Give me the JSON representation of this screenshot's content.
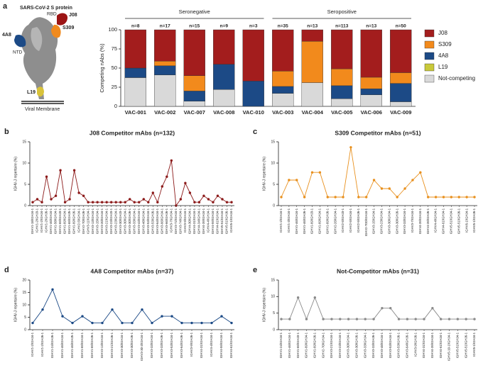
{
  "chart_data": [
    {
      "type": "stacked_bar",
      "panel": "a",
      "structure_labels": [
        "SARS-CoV-2 S protein",
        "RBD",
        "J08",
        "S309",
        "4A8",
        "NTD",
        "L19",
        "Viral Membrane"
      ],
      "ylabel": "Competing nAbs (%)",
      "ylim": [
        0,
        100
      ],
      "yticks": [
        0,
        25,
        50,
        75,
        100
      ],
      "categories": [
        "VAC-001",
        "VAC-002",
        "VAC-007",
        "VAC-008",
        "VAC-010",
        "VAC-003",
        "VAC-004",
        "VAC-005",
        "VAC-006",
        "VAC-009"
      ],
      "bar_labels": [
        "n=8",
        "n=17",
        "n=15",
        "n=9",
        "n=3",
        "n=35",
        "n=13",
        "n=113",
        "n=13",
        "n=50"
      ],
      "groups": [
        {
          "name": "Seronegative",
          "count": 5
        },
        {
          "name": "Seropositive",
          "count": 5
        }
      ],
      "series": [
        {
          "name": "Not-competing",
          "color": "#d9d9d9",
          "values": [
            37.5,
            41,
            6.7,
            22,
            0,
            17,
            31,
            10,
            15,
            6
          ]
        },
        {
          "name": "L19",
          "color": "#c9c93a",
          "values": [
            0,
            0,
            0,
            0,
            0,
            0,
            0,
            0,
            0,
            0
          ]
        },
        {
          "name": "4A8",
          "color": "#1c4a86",
          "values": [
            12.5,
            12,
            13.3,
            33,
            33,
            9,
            0,
            17,
            8,
            24
          ]
        },
        {
          "name": "S309",
          "color": "#f28a1c",
          "values": [
            0,
            6,
            20,
            0,
            0,
            20,
            54,
            22,
            15,
            14
          ]
        },
        {
          "name": "J08",
          "color": "#a31d1d",
          "values": [
            50,
            41,
            60,
            45,
            67,
            54,
            15,
            51,
            62,
            56
          ]
        }
      ]
    },
    {
      "type": "line",
      "panel": "b",
      "title": "J08 Competitor mAbs (n=132)",
      "color": "#8c1a1a",
      "ylabel": "IGHV-J repertoire (%)",
      "ylim": [
        0,
        15
      ],
      "yticks": [
        0,
        5,
        10,
        15
      ],
      "categories": [
        "IGHV1-18/IGHJ4-1",
        "IGHV1-2/IGHJ3-1",
        "IGHV1-2/IGHJ4-1",
        "IGHV1-2/IGHJ6-1",
        "IGHV1-46/IGHJ4-1",
        "IGHV1-58/IGHJ4-1",
        "IGHV1-69/IGHJ3-1",
        "IGHV1-69/IGHJ4-1",
        "IGHV1-69/IGHJ5-1",
        "IGHV1-69/IGHJ6-1",
        "IGHV2-5/IGHJ4-1",
        "IGHV2-70/IGHJ6-1",
        "IGHV3-11/IGHJ4-1",
        "IGHV3-13/IGHJ4-1",
        "IGHV3-15/IGHJ4-1",
        "IGHV3-20/IGHJ4-1",
        "IGHV3-21/IGHJ4-1",
        "IGHV3-23/IGHJ3-1",
        "IGHV3-23/IGHJ4-1",
        "IGHV3-30/IGHJ3-1",
        "IGHV3-30/IGHJ4-1",
        "IGHV3-30/IGHJ6-1",
        "IGHV3-33/IGHJ4-1",
        "IGHV3-43/IGHJ4-1",
        "IGHV3-48/IGHJ4-1",
        "IGHV3-53/IGHJ4-1",
        "IGHV3-53/IGHJ6-1",
        "IGHV3-64/IGHJ4-1",
        "IGHV3-66/IGHJ4-1",
        "IGHV3-66/IGHJ6-1",
        "IGHV3-7/IGHJ4-1",
        "IGHV3-72/IGHJ4-1",
        "IGHV3-74/IGHJ4-1",
        "IGHV3-9/IGHJ4-1",
        "IGHV4-30/IGHJ4-1",
        "IGHV4-31/IGHJ4-1",
        "IGHV4-34/IGHJ4-1",
        "IGHV4-39/IGHJ4-1",
        "IGHV4-4/IGHJ4-1",
        "IGHV4-59/IGHJ4-1",
        "IGHV4-61/IGHJ4-1",
        "IGHV5-51/IGHJ4-1",
        "IGHV5-51/IGHJ6-1",
        "IGHV6-1/IGHJ4-1"
      ],
      "values": [
        0.8,
        1.5,
        0.8,
        6.8,
        1.5,
        2.3,
        8.3,
        0.8,
        1.5,
        8.3,
        3,
        2.3,
        0.8,
        0.8,
        0.8,
        0.8,
        0.8,
        0.8,
        0.8,
        0.8,
        0.8,
        1.5,
        0.8,
        0.8,
        1.5,
        0.8,
        3,
        0.8,
        4.5,
        6.8,
        10.6,
        0,
        1.5,
        5.3,
        3,
        0.8,
        0.8,
        2.3,
        1.5,
        0.8,
        2.3,
        1.5,
        0.8,
        0.8
      ]
    },
    {
      "type": "line",
      "panel": "c",
      "title": "S309 Competitor mAbs (n=51)",
      "color": "#e8901e",
      "ylabel": "IGHV-J repertoire (%)",
      "ylim": [
        0,
        15
      ],
      "yticks": [
        0,
        5,
        10,
        15
      ],
      "categories": [
        "IGHV1-2/IGHJ4-1",
        "IGHV1-3/IGHJ4-1",
        "IGHV1-46/IGHJ4-1",
        "IGHV1-46/IGHJ6-1",
        "IGHV1-69/IGHJ3-1",
        "IGHV1-69/IGHJ4-1",
        "IGHV1-69/IGHJ6-1",
        "IGHV2-26/IGHJ4-1",
        "IGHV2-5/IGHJ3-1",
        "IGHV2-5/IGHJ4-1",
        "IGHV2-5/IGHJ6-1",
        "IGHV2-70D/IGHJ4-1",
        "IGHV3-15/IGHJ4-1",
        "IGHV3-23/IGHJ4-1",
        "IGHV3-30/IGHJ4-1",
        "IGHV3-30/IGHJ6-1",
        "IGHV3-33/IGHJ4-1",
        "IGHV3-7/IGHJ4-1",
        "IGHV4-39/IGHJ4-1",
        "IGHV4-39/IGHJ6-1",
        "IGHV4-4/IGHJ4-1",
        "IGHV4-61/IGHJ4-1",
        "IGHV5-51/IGHJ4-1",
        "IGHV5-51/IGHJ6-1",
        "IGHV6-1/IGHJ4-1",
        "IGHV6-1/IGHJ6-1"
      ],
      "values": [
        2,
        6,
        6,
        2,
        7.8,
        7.8,
        2,
        2,
        2,
        13.7,
        2,
        2,
        6,
        4,
        4,
        2,
        4,
        6,
        7.8,
        2,
        2,
        2,
        2,
        2,
        2,
        2
      ]
    },
    {
      "type": "line",
      "panel": "d",
      "title": "4A8 Competitor mAbs (n=37)",
      "color": "#1c4a86",
      "ylabel": "IGHV-J repertoire (%)",
      "ylim": [
        0,
        20
      ],
      "yticks": [
        0,
        5,
        10,
        15,
        20
      ],
      "categories": [
        "IGHV1-2/IGHJ4-1",
        "IGHV1-2/IGHJ6-1",
        "IGHV1-24/IGHJ6-1",
        "IGHV1-46/IGHJ4-1",
        "IGHV1-46/IGHJ5-1",
        "IGHV1-69/IGHJ4-1",
        "IGHV1-69/IGHJ6-1",
        "IGHV3-13/IGHJ4-1",
        "IGHV3-21/IGHJ6-1",
        "IGHV3-30/IGHJ4-1",
        "IGHV3-30/IGHJ6-1",
        "IGHV3-30-3/IGHJ4-1",
        "IGHV3-33/IGHJ4-1",
        "IGHV3-33/IGHJ6-1",
        "IGHV3-53/IGHJ4-1",
        "IGHV3-64/IGHJ6-1",
        "IGHV3-9/IGHJ6-1",
        "IGHV4-31/IGHJ4-1",
        "IGHV4-4/IGHJ4-1",
        "IGHV4-59/IGHJ4-1",
        "IGHV4-61/IGHJ4-1"
      ],
      "values": [
        2.7,
        8.1,
        16.2,
        5.4,
        2.7,
        5.4,
        2.7,
        2.7,
        8.1,
        2.7,
        2.7,
        8.1,
        2.7,
        5.4,
        5.4,
        2.7,
        2.7,
        2.7,
        2.7,
        5.4,
        2.7
      ]
    },
    {
      "type": "line",
      "panel": "e",
      "title": "Not-Competitor mAbs (n=31)",
      "color": "#8a8a8a",
      "ylabel": "IGHV-J repertoire (%)",
      "ylim": [
        0,
        15
      ],
      "yticks": [
        0,
        5,
        10,
        15
      ],
      "categories": [
        "IGHV1-24/IGHJ4-1",
        "IGHV1-46/IGHJ4-1",
        "IGHV1-69/IGHJ3-1",
        "IGHV1-69/IGHJ4-1",
        "IGHV1-69/IGHJ6-1",
        "IGHV2-70/IGHJ4-1",
        "IGHV3-21/IGHJ4-1",
        "IGHV3-23/IGHJ4-1",
        "IGHV3-30/IGHJ4-1",
        "IGHV3-30/IGHJ6-1",
        "IGHV3-33/IGHJ4-1",
        "IGHV3-33/IGHJ6-1",
        "IGHV3-48/IGHJ4-1",
        "IGHV3-53/IGHJ4-1",
        "IGHV3-53/IGHJ6-1",
        "IGHV3-64/IGHJ6-1",
        "IGHV3-9/IGHJ6-1",
        "IGHV4-31/IGHJ4-1",
        "IGHV4-39/IGHJ4-1",
        "IGHV4-61/IGHJ4-1",
        "IGHV5-10-1/IGHJ4-1",
        "IGHV5-51/IGHJ4-1",
        "IGHV5-51/IGHJ6-1",
        "IGHV6-1/IGHJ4-1"
      ],
      "values": [
        3.2,
        3.2,
        9.7,
        3.2,
        9.7,
        3.2,
        3.2,
        3.2,
        3.2,
        3.2,
        3.2,
        3.2,
        6.5,
        6.5,
        3.2,
        3.2,
        3.2,
        3.2,
        6.5,
        3.2,
        3.2,
        3.2,
        3.2,
        3.2
      ]
    }
  ]
}
